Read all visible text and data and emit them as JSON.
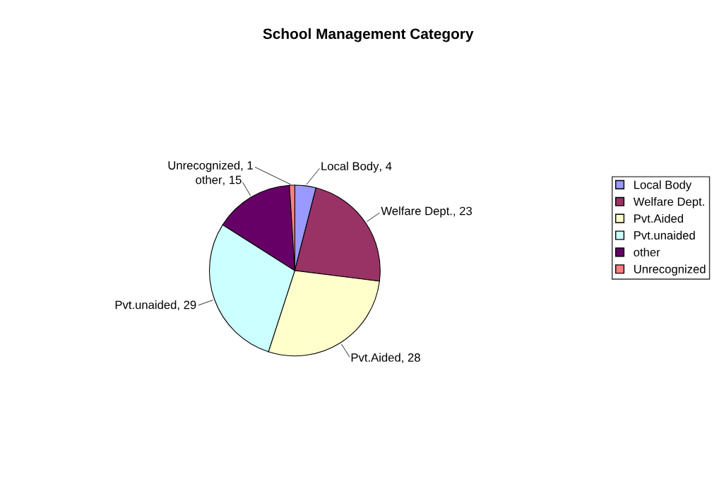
{
  "chart_data": {
    "type": "pie",
    "title": "School Management Category",
    "categories": [
      "Local Body",
      "Welfare Dept.",
      "Pvt.Aided",
      "Pvt.unaided",
      "other",
      "Unrecognized"
    ],
    "values": [
      4,
      23,
      28,
      29,
      15,
      1
    ],
    "value_labels": [
      ", 4",
      ", 23",
      ", 28",
      ", 29",
      ", 15",
      ", 1"
    ],
    "colors": [
      "#9999ff",
      "#993366",
      "#ffffcc",
      "#ccffff",
      "#660066",
      "#ff8080"
    ],
    "legend": "right"
  }
}
